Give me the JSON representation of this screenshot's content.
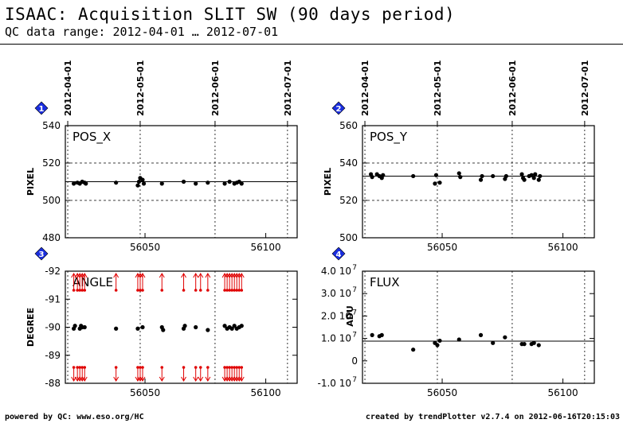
{
  "header": {
    "title": "ISAAC: Acquisition SLIT SW (90 days period)",
    "subtitle": "QC data range: 2012-04-01 … 2012-07-01"
  },
  "footer": {
    "left": "powered by QC: www.eso.org/HC",
    "right": "created by trendPlotter v2.7.4 on 2012-06-16T20:15:03"
  },
  "colors": {
    "data": "#000000",
    "outlier": "#e00000",
    "badge": "#1a2ee0",
    "grid": "#000000"
  },
  "chart_data": [
    {
      "panel": "1",
      "type": "scatter",
      "label": "POS_X",
      "ylabel": "PIXEL",
      "xlim": [
        56017,
        56113
      ],
      "ylim": [
        480,
        540
      ],
      "yticks": [
        480,
        500,
        520,
        540
      ],
      "ytick_labels": [
        "480",
        "500",
        "520",
        "540"
      ],
      "xticks": [
        56050,
        56100
      ],
      "xtick_labels": [
        "56050",
        "56100"
      ],
      "date_ticks": [
        {
          "x": 56018,
          "label": "2012-04-01"
        },
        {
          "x": 56048,
          "label": "2012-05-01"
        },
        {
          "x": 56079,
          "label": "2012-06-01"
        },
        {
          "x": 56109,
          "label": "2012-07-01"
        }
      ],
      "hlines": [
        510
      ],
      "dashed_hlines": [
        500,
        520
      ],
      "x": [
        56020.5,
        56022,
        56023,
        56024,
        56025,
        56025.5,
        56038,
        56047,
        56047.5,
        56048,
        56049,
        56049.5,
        56057,
        56066,
        56071,
        56076,
        56083,
        56085,
        56087,
        56088,
        56089,
        56090
      ],
      "y": [
        509,
        509.5,
        509,
        510,
        509.5,
        509,
        509.5,
        508,
        510,
        512,
        511,
        509,
        509,
        510,
        509,
        509.5,
        509,
        510,
        509,
        509.5,
        510,
        509
      ]
    },
    {
      "panel": "2",
      "type": "scatter",
      "label": "POS_Y",
      "ylabel": "PIXEL",
      "xlim": [
        56017,
        56113
      ],
      "ylim": [
        500,
        560
      ],
      "yticks": [
        500,
        520,
        540,
        560
      ],
      "ytick_labels": [
        "500",
        "520",
        "540",
        "560"
      ],
      "xticks": [
        56050,
        56100
      ],
      "xtick_labels": [
        "56050",
        "56100"
      ],
      "date_ticks": [
        {
          "x": 56018,
          "label": "2012-04-01"
        },
        {
          "x": 56048,
          "label": "2012-05-01"
        },
        {
          "x": 56079,
          "label": "2012-06-01"
        },
        {
          "x": 56109,
          "label": "2012-07-01"
        }
      ],
      "hlines": [
        533
      ],
      "dashed_hlines": [
        540,
        520
      ],
      "x": [
        56020.5,
        56021,
        56023,
        56024,
        56025,
        56025.5,
        56038,
        56047,
        56047.5,
        56049,
        56057,
        56057.5,
        56066,
        56066.5,
        56071,
        56076,
        56076.5,
        56083,
        56083.5,
        56084,
        56086,
        56087,
        56088,
        56088.5,
        56090,
        56090.5
      ],
      "y": [
        534,
        532.5,
        534,
        533,
        532,
        533.5,
        533,
        529,
        533.5,
        529.5,
        534.5,
        532.5,
        531,
        533,
        533,
        531.5,
        533,
        534,
        532,
        531,
        533,
        533.5,
        532,
        534,
        531,
        533
      ]
    },
    {
      "panel": "3",
      "type": "scatter",
      "label": "ANGLE",
      "ylabel": "DEGREE",
      "xlim": [
        56017,
        56113
      ],
      "ylim": [
        -88,
        -92
      ],
      "yticks": [
        -92,
        -91,
        -90,
        -89,
        -88
      ],
      "ytick_labels": [
        "-92",
        "-91",
        "-90",
        "-89",
        "-88"
      ],
      "xticks": [
        56050,
        56100
      ],
      "xtick_labels": [
        "56050",
        "56100"
      ],
      "date_ticks": [
        {
          "x": 56018,
          "label": "2012-04-01"
        },
        {
          "x": 56048,
          "label": "2012-05-01"
        },
        {
          "x": 56079,
          "label": "2012-06-01"
        },
        {
          "x": 56109,
          "label": "2012-07-01"
        }
      ],
      "x": [
        56020.5,
        56021,
        56023,
        56023.5,
        56024,
        56025,
        56038,
        56047,
        56049,
        56057,
        56057.5,
        56066,
        56066.5,
        56071,
        56076,
        56083,
        56084,
        56085,
        56086,
        56087,
        56088,
        56089,
        56090
      ],
      "y": [
        -89.95,
        -90.05,
        -89.95,
        -90.05,
        -90,
        -90,
        -89.95,
        -89.95,
        -90,
        -90,
        -89.9,
        -89.95,
        -90.05,
        -90,
        -89.9,
        -90.05,
        -89.95,
        -90,
        -89.95,
        -90.05,
        -89.95,
        -90,
        -90.05
      ],
      "outliers_top": [
        56020.5,
        56022,
        56023,
        56024,
        56025,
        56038,
        56047,
        56048,
        56049,
        56057,
        56066,
        56071,
        56073,
        56076,
        56083,
        56084,
        56085,
        56086,
        56087,
        56088,
        56089,
        56090
      ],
      "outliers_bottom": [
        56020.5,
        56022,
        56023,
        56024,
        56025,
        56038,
        56047,
        56048,
        56049,
        56057,
        56066,
        56071,
        56073,
        56076,
        56083,
        56084,
        56085,
        56086,
        56087,
        56088,
        56089,
        56090
      ]
    },
    {
      "panel": "4",
      "type": "scatter",
      "label": "FLUX",
      "ylabel": "ADU",
      "xlim": [
        56017,
        56113
      ],
      "ylim": [
        -10000000,
        40000000
      ],
      "yticks": [
        -10000000,
        0,
        10000000,
        20000000,
        30000000,
        40000000
      ],
      "ytick_labels": [
        "-1.0 10",
        "0",
        "1.0 10",
        "2.0 10",
        "3.0 10",
        "4.0 10"
      ],
      "ytick_exponents": [
        "7",
        "",
        "7",
        "7",
        "7",
        "7"
      ],
      "xticks": [
        56050,
        56100
      ],
      "xtick_labels": [
        "56050",
        "56100"
      ],
      "date_ticks": [
        {
          "x": 56018,
          "label": "2012-04-01"
        },
        {
          "x": 56048,
          "label": "2012-05-01"
        },
        {
          "x": 56079,
          "label": "2012-06-01"
        },
        {
          "x": 56109,
          "label": "2012-07-01"
        }
      ],
      "hlines": [
        8800000
      ],
      "x": [
        56021,
        56024,
        56025,
        56038,
        56047,
        56048,
        56049,
        56057,
        56066,
        56071,
        56076,
        56083,
        56084,
        56087,
        56088,
        56090
      ],
      "y": [
        11500000,
        11000000,
        11500000,
        5000000,
        8000000,
        7000000,
        9000000,
        9500000,
        11500000,
        8000000,
        10500000,
        7500000,
        7500000,
        7500000,
        8000000,
        7000000
      ]
    }
  ]
}
